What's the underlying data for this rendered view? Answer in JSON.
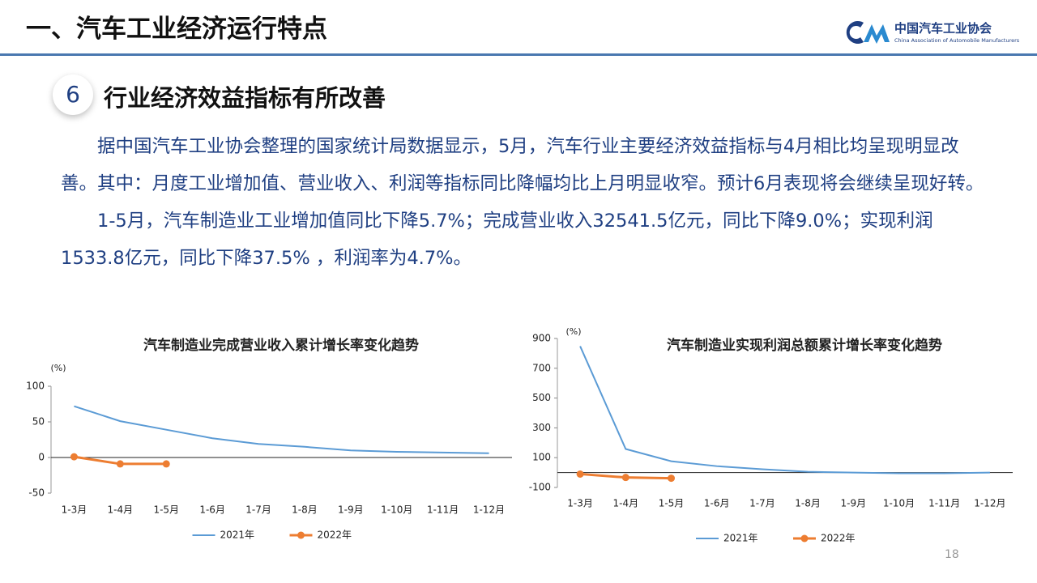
{
  "header": {
    "title": "一、汽车工业经济运行特点",
    "logo_name": "中国汽车工业协会",
    "logo_subtitle": "China Association of Automobile Manufacturers"
  },
  "section": {
    "number": "6",
    "heading": "行业经济效益指标有所改善"
  },
  "paragraphs": [
    "据中国汽车工业协会整理的国家统计局数据显示，5月，汽车行业主要经济效益指标与4月相比均呈现明显改善。其中：月度工业增加值、营业收入、利润等指标同比降幅均比上月明显收窄。预计6月表现将会继续呈现好转。",
    "1-5月，汽车制造业工业增加值同比下降5.7%；完成营业收入32541.5亿元，同比下降9.0%；实现利润1533.8亿元，同比下降37.5% ，利润率为4.7%。"
  ],
  "page_number": "18",
  "chart_data": [
    {
      "type": "line",
      "title": "汽车制造业完成营业收入累计增长率变化趋势",
      "y_label": "(%)",
      "categories": [
        "1-3月",
        "1-4月",
        "1-5月",
        "1-6月",
        "1-7月",
        "1-8月",
        "1-9月",
        "1-10月",
        "1-11月",
        "1-12月"
      ],
      "series": [
        {
          "name": "2021年",
          "color": "#5b9bd5",
          "marker": false,
          "values": [
            72,
            51,
            39,
            27,
            19,
            15,
            10,
            8,
            7,
            6
          ]
        },
        {
          "name": "2022年",
          "color": "#ed7d31",
          "marker": true,
          "values": [
            1,
            -9,
            -9,
            null,
            null,
            null,
            null,
            null,
            null,
            null
          ]
        }
      ],
      "ylim": [
        -50,
        100
      ],
      "yticks": [
        -50,
        0,
        50,
        100
      ],
      "legend": "bottom"
    },
    {
      "type": "line",
      "title": "汽车制造业实现利润总额累计增长率变化趋势",
      "y_label": "(%)",
      "categories": [
        "1-3月",
        "1-4月",
        "1-5月",
        "1-6月",
        "1-7月",
        "1-8月",
        "1-9月",
        "1-10月",
        "1-11月",
        "1-12月"
      ],
      "series": [
        {
          "name": "2021年",
          "color": "#5b9bd5",
          "marker": false,
          "values": [
            848,
            158,
            76,
            43,
            22,
            5,
            0,
            -5,
            -5,
            0
          ]
        },
        {
          "name": "2022年",
          "color": "#ed7d31",
          "marker": true,
          "values": [
            -10,
            -33,
            -38,
            null,
            null,
            null,
            null,
            null,
            null,
            null
          ]
        }
      ],
      "ylim": [
        -100,
        900
      ],
      "yticks": [
        -100,
        100,
        300,
        500,
        700,
        900
      ],
      "legend": "bottom"
    }
  ]
}
